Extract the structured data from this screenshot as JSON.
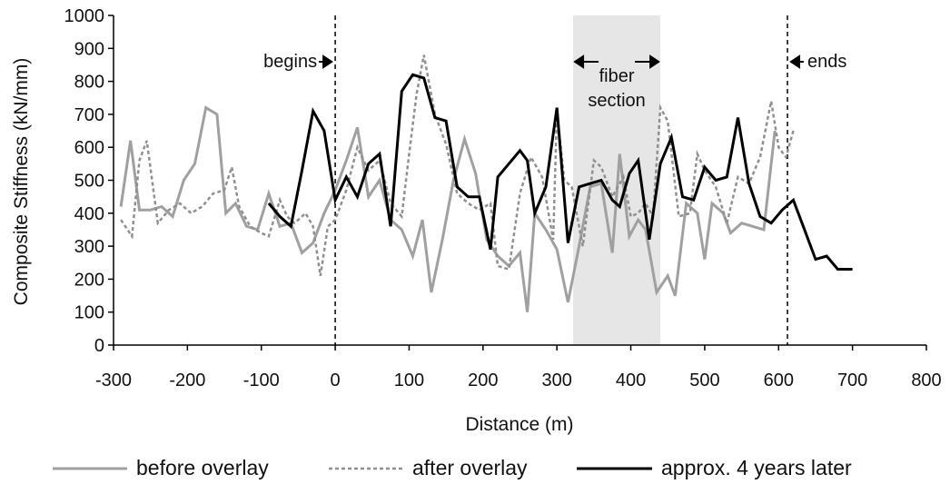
{
  "chart_data": {
    "type": "line",
    "title": "",
    "xlabel": "Distance (m)",
    "ylabel": "Composite Stiffness (kN/mm)",
    "xlim": [
      -300,
      800
    ],
    "ylim": [
      0,
      1000
    ],
    "x_ticks": [
      -300,
      -200,
      -100,
      0,
      100,
      200,
      300,
      400,
      500,
      600,
      700,
      800
    ],
    "y_ticks": [
      0,
      100,
      200,
      300,
      400,
      500,
      600,
      700,
      800,
      900,
      1000
    ],
    "grid": false,
    "legend_position": "bottom",
    "series": [
      {
        "name": "before overlay",
        "style": "solid",
        "color": "#a0a0a0",
        "x": [
          -290,
          -277,
          -265,
          -250,
          -235,
          -220,
          -205,
          -190,
          -175,
          -160,
          -148,
          -135,
          -120,
          -105,
          -90,
          -75,
          -60,
          -45,
          -30,
          -15,
          0,
          15,
          30,
          45,
          60,
          75,
          90,
          105,
          118,
          130,
          145,
          160,
          175,
          190,
          205,
          220,
          235,
          250,
          260,
          270,
          285,
          300,
          315,
          330,
          345,
          360,
          375,
          385,
          398,
          410,
          420,
          435,
          450,
          460,
          475,
          490,
          500,
          510,
          525,
          535,
          550,
          565,
          580,
          595,
          610,
          625
        ],
        "y": [
          420,
          620,
          410,
          410,
          420,
          390,
          500,
          550,
          720,
          700,
          400,
          430,
          360,
          350,
          460,
          360,
          370,
          280,
          310,
          400,
          470,
          560,
          660,
          450,
          500,
          380,
          350,
          270,
          380,
          160,
          320,
          500,
          625,
          520,
          320,
          270,
          240,
          280,
          100,
          400,
          350,
          290,
          130,
          300,
          480,
          490,
          280,
          580,
          330,
          380,
          350,
          160,
          210,
          150,
          430,
          400,
          260,
          430,
          400,
          340,
          370,
          360,
          350,
          650,
          null,
          null
        ],
        "y_note": ""
      },
      {
        "name": "after overlay",
        "style": "dotted",
        "color": "#909090",
        "x": [
          -290,
          -275,
          -265,
          -255,
          -240,
          -225,
          -210,
          -195,
          -180,
          -165,
          -150,
          -140,
          -130,
          -115,
          -100,
          -90,
          -75,
          -65,
          -55,
          -40,
          -30,
          -20,
          -10,
          0,
          15,
          30,
          45,
          60,
          75,
          90,
          100,
          110,
          120,
          135,
          150,
          165,
          180,
          195,
          210,
          220,
          235,
          250,
          265,
          280,
          295,
          300,
          310,
          320,
          335,
          350,
          360,
          375,
          390,
          400,
          410,
          420,
          430,
          440,
          450,
          465,
          480,
          490,
          500,
          515,
          530,
          545,
          560,
          575,
          590,
          600,
          610,
          620
        ],
        "y": [
          380,
          330,
          560,
          620,
          370,
          410,
          430,
          400,
          420,
          460,
          470,
          540,
          420,
          360,
          340,
          330,
          440,
          390,
          370,
          400,
          360,
          210,
          360,
          380,
          470,
          600,
          530,
          560,
          430,
          390,
          580,
          760,
          880,
          700,
          610,
          460,
          430,
          410,
          430,
          240,
          230,
          460,
          570,
          510,
          320,
          710,
          500,
          480,
          300,
          560,
          540,
          450,
          510,
          390,
          400,
          430,
          390,
          720,
          680,
          390,
          400,
          580,
          530,
          480,
          370,
          510,
          490,
          570,
          740,
          600,
          570,
          650
        ]
      },
      {
        "name": "approx. 4 years later",
        "style": "solid",
        "color": "#000000",
        "x": [
          -90,
          -75,
          -60,
          -45,
          -30,
          -15,
          0,
          15,
          30,
          45,
          60,
          75,
          90,
          105,
          120,
          135,
          150,
          165,
          180,
          195,
          210,
          220,
          235,
          250,
          260,
          270,
          285,
          300,
          315,
          330,
          345,
          360,
          375,
          385,
          398,
          410,
          425,
          440,
          455,
          470,
          485,
          500,
          515,
          530,
          545,
          560,
          575,
          590,
          605,
          620,
          635,
          650,
          665,
          680,
          700
        ],
        "y": [
          430,
          390,
          360,
          530,
          710,
          650,
          440,
          510,
          450,
          550,
          580,
          360,
          770,
          820,
          810,
          690,
          680,
          480,
          450,
          450,
          290,
          510,
          550,
          590,
          560,
          400,
          480,
          720,
          310,
          480,
          490,
          500,
          440,
          420,
          520,
          560,
          320,
          550,
          630,
          450,
          440,
          540,
          500,
          510,
          690,
          490,
          390,
          370,
          410,
          440,
          350,
          260,
          270,
          230,
          230
        ]
      }
    ],
    "annotations": {
      "begins": {
        "text": "begins",
        "x": 0
      },
      "ends": {
        "text": "ends",
        "x": 612
      },
      "fiber_section": {
        "text_line1": "fiber",
        "text_line2": "section",
        "x_start": 322,
        "x_end": 440
      }
    }
  }
}
